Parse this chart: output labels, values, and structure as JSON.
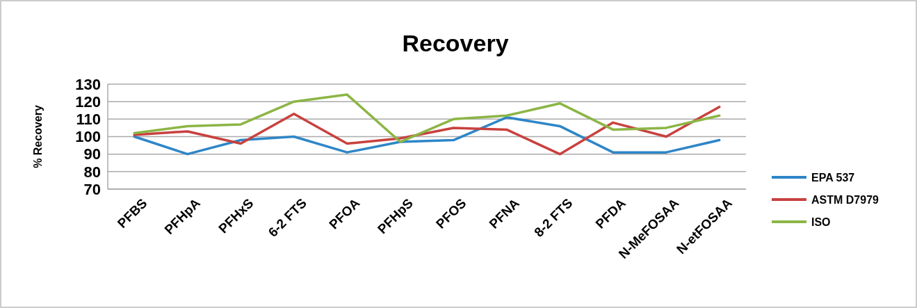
{
  "chart_data": {
    "type": "line",
    "title": "Recovery",
    "ylabel": "% Recovery",
    "categories": [
      "PFBS",
      "PFHpA",
      "PFHxS",
      "6-2 FTS",
      "PFOA",
      "PFHpS",
      "PFOS",
      "PFNA",
      "8-2 FTS",
      "PFDA",
      "N-MeFOSAA",
      "N-etFOSAA"
    ],
    "series": [
      {
        "name": "EPA 537",
        "color": "#2e86c8",
        "values": [
          100,
          90,
          98,
          100,
          91,
          97,
          98,
          111,
          106,
          91,
          91,
          98
        ]
      },
      {
        "name": "ASTM D7979",
        "color": "#c8413e",
        "values": [
          101,
          103,
          96,
          113,
          96,
          99,
          105,
          104,
          90,
          108,
          100,
          117
        ]
      },
      {
        "name": "ISO",
        "color": "#8cb545",
        "values": [
          102,
          106,
          107,
          120,
          124,
          97,
          110,
          112,
          119,
          104,
          105,
          112
        ]
      }
    ],
    "ylim": [
      70,
      130
    ],
    "yticks": [
      70,
      80,
      90,
      100,
      110,
      120,
      130
    ],
    "grid": "y",
    "legend": "right",
    "marker": "none",
    "line_style": "solid"
  }
}
